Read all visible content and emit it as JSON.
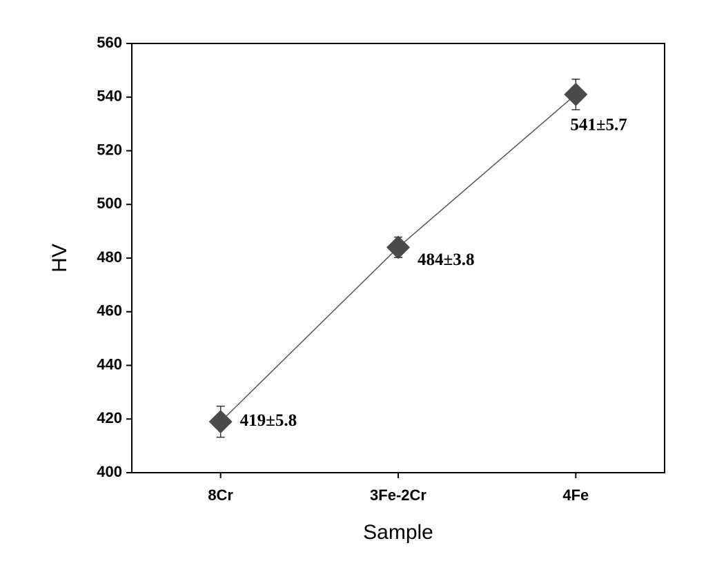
{
  "chart_data": {
    "type": "line",
    "x_label": "Sample",
    "y_label": "HV",
    "categories": [
      "8Cr",
      "3Fe-2Cr",
      "4Fe"
    ],
    "values": [
      419,
      484,
      541
    ],
    "errors": [
      5.8,
      3.8,
      5.7
    ],
    "value_labels": [
      "419±5.8",
      "484±3.8",
      "541±5.7"
    ],
    "color": "#4a4a4a",
    "ylim": [
      400,
      560
    ],
    "yticks": [
      400,
      420,
      440,
      460,
      480,
      500,
      520,
      540,
      560
    ],
    "grid": false
  }
}
